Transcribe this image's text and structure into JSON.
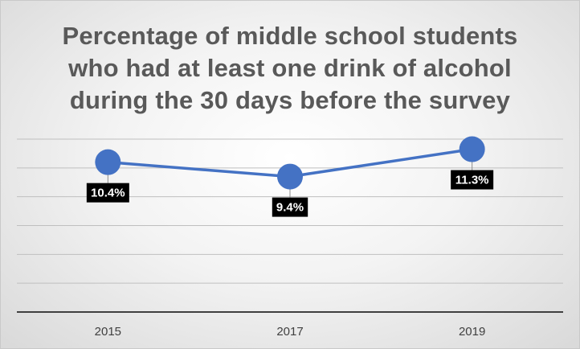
{
  "chart_data": {
    "type": "line",
    "title": "Percentage of middle school students\nwho had at least one drink of alcohol\nduring the 30 days before the survey",
    "categories": [
      "2015",
      "2017",
      "2019"
    ],
    "series": [
      {
        "values": [
          10.4,
          9.4,
          11.3
        ],
        "labels": [
          "10.4%",
          "9.4%",
          "11.3%"
        ]
      }
    ],
    "ylim": [
      0,
      12
    ],
    "grid": true,
    "legend": "none",
    "colors": {
      "line": "#4472C4",
      "marker": "#4472C4",
      "gridline": "#bfbfbf",
      "axis": "#404040",
      "label_bg": "#000000",
      "label_text": "#ffffff"
    }
  }
}
